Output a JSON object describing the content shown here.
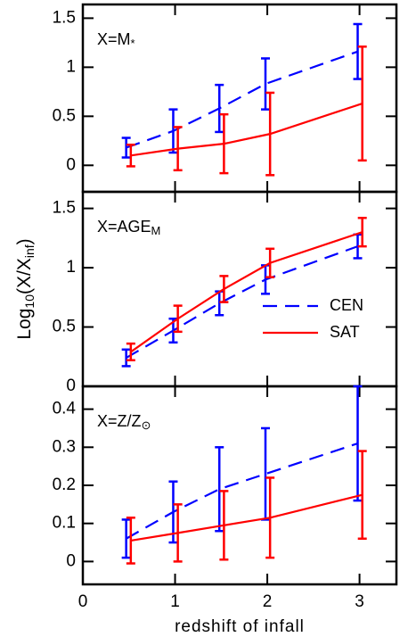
{
  "chart_data": [
    {
      "type": "line",
      "label": "X=M",
      "label_sub": "*",
      "xlim": [
        0,
        3.4
      ],
      "xticks": [
        0,
        1,
        2,
        3
      ],
      "ylim": [
        -0.27,
        1.64
      ],
      "yticks": [
        0,
        0.5,
        1,
        1.5
      ],
      "series": [
        {
          "color": "#0000ff",
          "dash": "dashed",
          "x": [
            0.47,
            0.98,
            1.48,
            1.98,
            2.98
          ],
          "values": [
            0.18,
            0.35,
            0.58,
            0.83,
            1.16
          ],
          "errors": [
            0.1,
            0.22,
            0.24,
            0.26,
            0.28
          ]
        },
        {
          "color": "#ff0000",
          "dash": "solid",
          "x": [
            0.52,
            1.03,
            1.53,
            2.03,
            3.03
          ],
          "values": [
            0.1,
            0.17,
            0.22,
            0.32,
            0.63
          ],
          "errors": [
            0.11,
            0.22,
            0.3,
            0.42,
            0.58
          ]
        }
      ]
    },
    {
      "type": "line",
      "label": "X=AGE",
      "label_sub": "M",
      "ylabel_parts": [
        "Log",
        "10",
        "(X/X",
        "inf",
        ")"
      ],
      "xlim": [
        0,
        3.4
      ],
      "xticks": [
        0,
        1,
        2,
        3
      ],
      "ylim": [
        0,
        1.64
      ],
      "yticks": [
        0,
        0.5,
        1,
        1.5
      ],
      "legend": "lower right",
      "series": [
        {
          "name": "CEN",
          "color": "#0000ff",
          "dash": "dashed",
          "x": [
            0.47,
            0.98,
            1.48,
            1.98,
            2.98
          ],
          "values": [
            0.24,
            0.47,
            0.7,
            0.9,
            1.18
          ],
          "errors": [
            0.07,
            0.1,
            0.1,
            0.12,
            0.1
          ]
        },
        {
          "name": "SAT",
          "color": "#ff0000",
          "dash": "solid",
          "x": [
            0.52,
            1.03,
            1.53,
            2.03,
            3.03
          ],
          "values": [
            0.29,
            0.57,
            0.82,
            1.04,
            1.3
          ],
          "errors": [
            0.07,
            0.11,
            0.11,
            0.12,
            0.12
          ]
        }
      ]
    },
    {
      "type": "line",
      "label": "X=Z/Z",
      "label_sub": "⊙",
      "x_label": "redshift of infall",
      "xlim": [
        0,
        3.4
      ],
      "xticks": [
        0,
        1,
        2,
        3
      ],
      "ylim": [
        -0.06,
        0.46
      ],
      "yticks": [
        0,
        0.1,
        0.2,
        0.3,
        0.4
      ],
      "series": [
        {
          "color": "#0000ff",
          "dash": "dashed",
          "x": [
            0.47,
            0.98,
            1.48,
            1.98,
            2.98
          ],
          "values": [
            0.06,
            0.13,
            0.19,
            0.23,
            0.31
          ],
          "errors": [
            0.05,
            0.08,
            0.11,
            0.12,
            0.15
          ]
        },
        {
          "color": "#ff0000",
          "dash": "solid",
          "x": [
            0.52,
            1.03,
            1.53,
            2.03,
            3.03
          ],
          "values": [
            0.055,
            0.075,
            0.095,
            0.115,
            0.175
          ],
          "errors": [
            0.06,
            0.075,
            0.09,
            0.105,
            0.115
          ]
        }
      ]
    }
  ]
}
